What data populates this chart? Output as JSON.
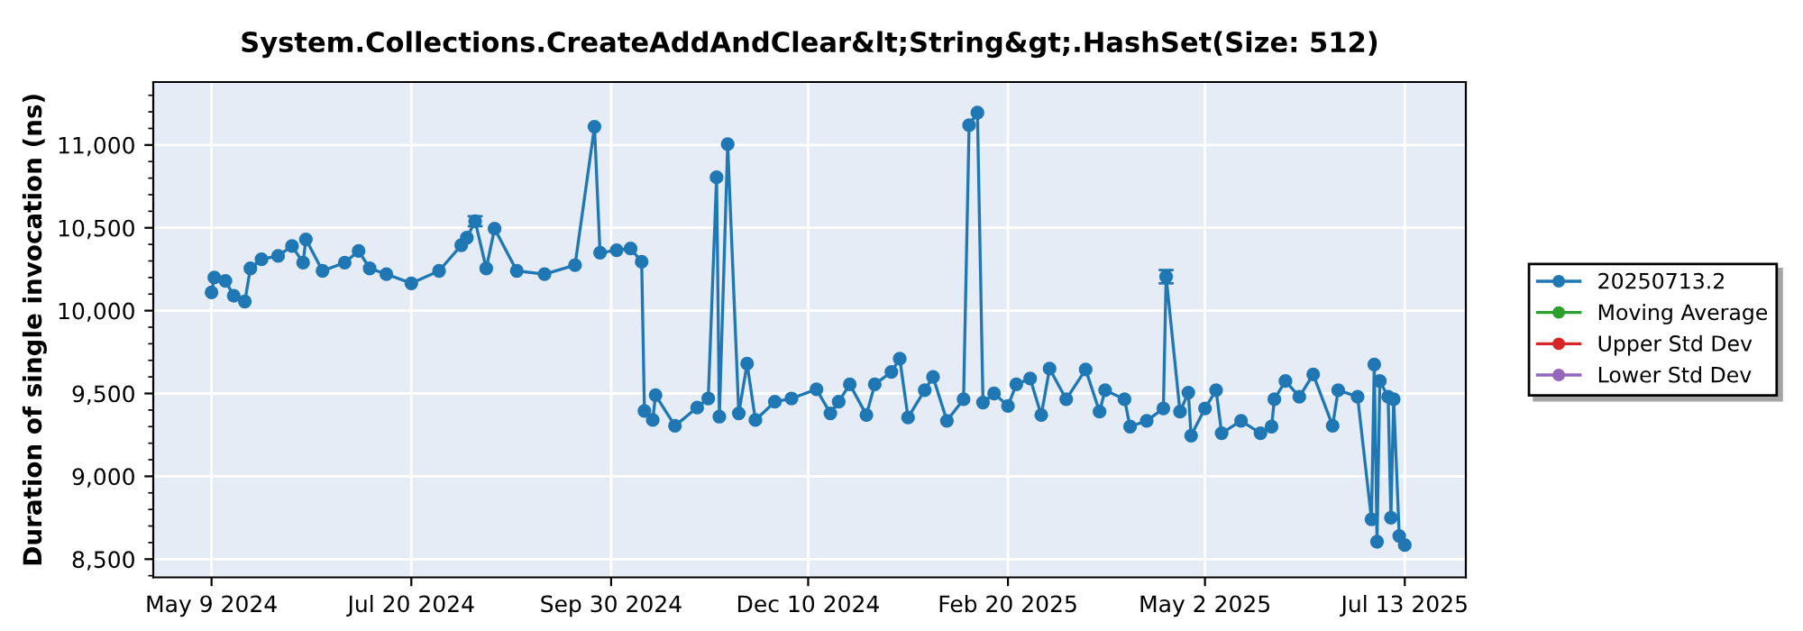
{
  "chart_data": {
    "type": "line",
    "title": "System.Collections.CreateAddAndClear&lt;String&gt;.HashSet(Size: 512)",
    "ylabel": "Duration of single invocation (ns)",
    "x": [
      "2024-05-09",
      "2024-05-10",
      "2024-05-14",
      "2024-05-17",
      "2024-05-21",
      "2024-05-23",
      "2024-05-27",
      "2024-06-02",
      "2024-06-07",
      "2024-06-11",
      "2024-06-12",
      "2024-06-18",
      "2024-06-26",
      "2024-07-01",
      "2024-07-05",
      "2024-07-11",
      "2024-07-20",
      "2024-07-30",
      "2024-08-07",
      "2024-08-09",
      "2024-08-12",
      "2024-08-16",
      "2024-08-19",
      "2024-08-27",
      "2024-09-06",
      "2024-09-17",
      "2024-09-24",
      "2024-09-26",
      "2024-10-02",
      "2024-10-07",
      "2024-10-11",
      "2024-10-12",
      "2024-10-15",
      "2024-10-16",
      "2024-10-23",
      "2024-10-31",
      "2024-11-04",
      "2024-11-07",
      "2024-11-08",
      "2024-11-11",
      "2024-11-15",
      "2024-11-18",
      "2024-11-21",
      "2024-11-28",
      "2024-12-04",
      "2024-12-13",
      "2024-12-18",
      "2024-12-21",
      "2024-12-25",
      "2024-12-31",
      "2025-01-03",
      "2025-01-09",
      "2025-01-12",
      "2025-01-15",
      "2025-01-21",
      "2025-01-24",
      "2025-01-29",
      "2025-02-04",
      "2025-02-06",
      "2025-02-09",
      "2025-02-11",
      "2025-02-15",
      "2025-02-20",
      "2025-02-23",
      "2025-02-28",
      "2025-03-04",
      "2025-03-07",
      "2025-03-13",
      "2025-03-20",
      "2025-03-25",
      "2025-03-27",
      "2025-04-03",
      "2025-04-05",
      "2025-04-11",
      "2025-04-17",
      "2025-04-18",
      "2025-04-23",
      "2025-04-26",
      "2025-04-27",
      "2025-05-02",
      "2025-05-06",
      "2025-05-08",
      "2025-05-15",
      "2025-05-22",
      "2025-05-26",
      "2025-05-27",
      "2025-05-31",
      "2025-06-05",
      "2025-06-10",
      "2025-06-17",
      "2025-06-19",
      "2025-06-26",
      "2025-07-01",
      "2025-07-02",
      "2025-07-03",
      "2025-07-04",
      "2025-07-07",
      "2025-07-08",
      "2025-07-09",
      "2025-07-11",
      "2025-07-13"
    ],
    "series": [
      {
        "name": "20250713.2",
        "color": "#1f77b4",
        "values": [
          10110,
          10200,
          10180,
          10090,
          10055,
          10255,
          10310,
          10330,
          10390,
          10290,
          10430,
          10240,
          10290,
          10360,
          10255,
          10220,
          10165,
          10240,
          10395,
          10440,
          10540,
          10255,
          10495,
          10240,
          10220,
          10275,
          11110,
          10350,
          10365,
          10375,
          10295,
          9395,
          9340,
          9490,
          9305,
          9415,
          9470,
          10805,
          9360,
          11005,
          9380,
          9680,
          9340,
          9450,
          9470,
          9525,
          9380,
          9450,
          9555,
          9370,
          9555,
          9630,
          9710,
          9355,
          9520,
          9600,
          9335,
          9465,
          11120,
          11195,
          9445,
          9500,
          9425,
          9555,
          9590,
          9370,
          9650,
          9465,
          9645,
          9390,
          9520,
          9465,
          9300,
          9335,
          9410,
          10205,
          9390,
          9505,
          9245,
          9410,
          9520,
          9260,
          9335,
          9260,
          9300,
          9465,
          9575,
          9480,
          9615,
          9305,
          9520,
          9480,
          8740,
          9675,
          8605,
          9575,
          9480,
          8750,
          9465,
          8640,
          8585
        ],
        "errors": [
          null,
          null,
          null,
          null,
          null,
          null,
          null,
          null,
          null,
          null,
          null,
          null,
          null,
          null,
          null,
          null,
          null,
          null,
          null,
          null,
          30,
          null,
          null,
          null,
          null,
          null,
          null,
          null,
          null,
          null,
          null,
          null,
          null,
          null,
          null,
          null,
          null,
          null,
          null,
          null,
          null,
          null,
          null,
          null,
          null,
          null,
          null,
          null,
          null,
          null,
          null,
          null,
          null,
          null,
          null,
          null,
          null,
          null,
          null,
          null,
          null,
          null,
          null,
          null,
          null,
          null,
          null,
          null,
          null,
          null,
          null,
          null,
          null,
          null,
          null,
          40,
          null,
          null,
          null,
          null,
          null,
          null,
          null,
          null,
          null,
          null,
          null,
          null,
          null,
          null,
          null,
          null,
          null,
          null,
          null,
          null,
          null,
          null,
          null,
          null,
          null
        ]
      },
      {
        "name": "Moving Average",
        "color": "#2ca02c",
        "values": [
          null,
          null,
          null,
          null,
          null,
          null,
          null,
          null,
          null,
          null,
          null,
          null,
          null,
          null,
          null,
          null,
          null,
          null,
          null,
          null,
          null,
          null,
          null,
          null,
          null,
          null,
          null,
          null,
          null,
          null,
          null,
          null,
          null,
          null,
          null,
          null,
          null,
          null,
          null,
          null,
          null,
          null,
          null,
          null,
          null,
          null,
          null,
          null,
          null,
          null,
          null,
          null,
          null,
          null,
          null,
          null,
          null,
          null,
          null,
          null,
          null,
          null,
          null,
          null,
          null,
          null,
          null,
          null,
          null,
          null,
          null,
          null,
          null,
          null,
          null,
          null,
          null,
          null,
          null,
          null,
          null,
          null,
          null,
          null,
          null,
          null,
          null,
          null,
          null,
          null,
          null,
          null,
          null,
          null,
          null,
          null,
          null,
          null,
          null,
          null,
          null
        ]
      },
      {
        "name": "Upper Std Dev",
        "color": "#d62728",
        "values": [
          null,
          null,
          null,
          null,
          null,
          null,
          null,
          null,
          null,
          null,
          null,
          null,
          null,
          null,
          null,
          null,
          null,
          null,
          null,
          null,
          null,
          null,
          null,
          null,
          null,
          null,
          null,
          null,
          null,
          null,
          null,
          null,
          null,
          null,
          null,
          null,
          null,
          null,
          null,
          null,
          null,
          null,
          null,
          null,
          null,
          null,
          null,
          null,
          null,
          null,
          null,
          null,
          null,
          null,
          null,
          null,
          null,
          null,
          null,
          null,
          null,
          null,
          null,
          null,
          null,
          null,
          null,
          null,
          null,
          null,
          null,
          null,
          null,
          null,
          null,
          null,
          null,
          null,
          null,
          null,
          null,
          null,
          null,
          null,
          null,
          null,
          null,
          null,
          null,
          null,
          null,
          null,
          null,
          null,
          null,
          null,
          null,
          null,
          null,
          null,
          null
        ]
      },
      {
        "name": "Lower Std Dev",
        "color": "#9467bd",
        "values": [
          null,
          null,
          null,
          null,
          null,
          null,
          null,
          null,
          null,
          null,
          null,
          null,
          null,
          null,
          null,
          null,
          null,
          null,
          null,
          null,
          null,
          null,
          null,
          null,
          null,
          null,
          null,
          null,
          null,
          null,
          null,
          null,
          null,
          null,
          null,
          null,
          null,
          null,
          null,
          null,
          null,
          null,
          null,
          null,
          null,
          null,
          null,
          null,
          null,
          null,
          null,
          null,
          null,
          null,
          null,
          null,
          null,
          null,
          null,
          null,
          null,
          null,
          null,
          null,
          null,
          null,
          null,
          null,
          null,
          null,
          null,
          null,
          null,
          null,
          null,
          null,
          null,
          null,
          null,
          null,
          null,
          null,
          null,
          null,
          null,
          null,
          null,
          null,
          null,
          null,
          null,
          null,
          null,
          null,
          null,
          null,
          null,
          null,
          null,
          null,
          null
        ]
      }
    ],
    "xlim": [
      "2024-04-18",
      "2025-08-04"
    ],
    "xticks": [
      {
        "value": "2024-05-09",
        "label": "May 9 2024"
      },
      {
        "value": "2024-07-20",
        "label": "Jul 20 2024"
      },
      {
        "value": "2024-09-30",
        "label": "Sep 30 2024"
      },
      {
        "value": "2024-12-10",
        "label": "Dec 10 2024"
      },
      {
        "value": "2025-02-20",
        "label": "Feb 20 2025"
      },
      {
        "value": "2025-05-02",
        "label": "May 2 2025"
      },
      {
        "value": "2025-07-13",
        "label": "Jul 13 2025"
      }
    ],
    "ylim": [
      8390,
      11380
    ],
    "yticks": [
      {
        "value": 8500,
        "label": "8,500"
      },
      {
        "value": 9000,
        "label": "9,000"
      },
      {
        "value": 9500,
        "label": "9,500"
      },
      {
        "value": 10000,
        "label": "10,000"
      },
      {
        "value": 10500,
        "label": "10,500"
      },
      {
        "value": 11000,
        "label": "11,000"
      }
    ],
    "grid": true,
    "legend": "right",
    "marker": "circle",
    "line_style": "solid"
  }
}
